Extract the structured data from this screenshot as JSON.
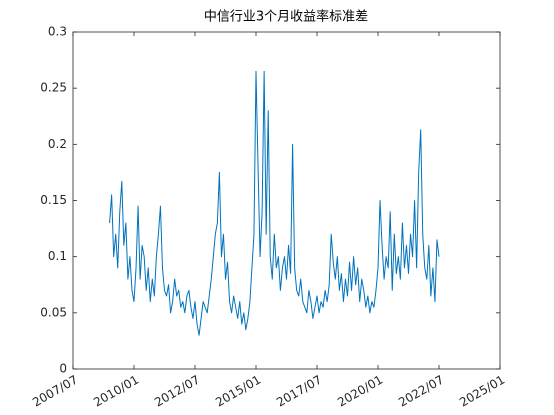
{
  "chart_data": {
    "type": "line",
    "title": "中信行业3个月收益率标准差",
    "x": [
      "2009/01",
      "2009/02",
      "2009/03",
      "2009/04",
      "2009/05",
      "2009/06",
      "2009/07",
      "2009/08",
      "2009/09",
      "2009/10",
      "2009/11",
      "2009/12",
      "2010/01",
      "2010/02",
      "2010/03",
      "2010/04",
      "2010/05",
      "2010/06",
      "2010/07",
      "2010/08",
      "2010/09",
      "2010/10",
      "2010/11",
      "2010/12",
      "2011/01",
      "2011/02",
      "2011/03",
      "2011/04",
      "2011/05",
      "2011/06",
      "2011/07",
      "2011/08",
      "2011/09",
      "2011/10",
      "2011/11",
      "2011/12",
      "2012/01",
      "2012/02",
      "2012/03",
      "2012/04",
      "2012/05",
      "2012/06",
      "2012/07",
      "2012/08",
      "2012/09",
      "2012/10",
      "2012/11",
      "2012/12",
      "2013/01",
      "2013/02",
      "2013/03",
      "2013/04",
      "2013/05",
      "2013/06",
      "2013/07",
      "2013/08",
      "2013/09",
      "2013/10",
      "2013/11",
      "2013/12",
      "2014/01",
      "2014/02",
      "2014/03",
      "2014/04",
      "2014/05",
      "2014/06",
      "2014/07",
      "2014/08",
      "2014/09",
      "2014/10",
      "2014/11",
      "2014/12",
      "2015/01",
      "2015/02",
      "2015/03",
      "2015/04",
      "2015/05",
      "2015/06",
      "2015/07",
      "2015/08",
      "2015/09",
      "2015/10",
      "2015/11",
      "2015/12",
      "2016/01",
      "2016/02",
      "2016/03",
      "2016/04",
      "2016/05",
      "2016/06",
      "2016/07",
      "2016/08",
      "2016/09",
      "2016/10",
      "2016/11",
      "2016/12",
      "2017/01",
      "2017/02",
      "2017/03",
      "2017/04",
      "2017/05",
      "2017/06",
      "2017/07",
      "2017/08",
      "2017/09",
      "2017/10",
      "2017/11",
      "2017/12",
      "2018/01",
      "2018/02",
      "2018/03",
      "2018/04",
      "2018/05",
      "2018/06",
      "2018/07",
      "2018/08",
      "2018/09",
      "2018/10",
      "2018/11",
      "2018/12",
      "2019/01",
      "2019/02",
      "2019/03",
      "2019/04",
      "2019/05",
      "2019/06",
      "2019/07",
      "2019/08",
      "2019/09",
      "2019/10",
      "2019/11",
      "2019/12",
      "2020/01",
      "2020/02",
      "2020/03",
      "2020/04",
      "2020/05",
      "2020/06",
      "2020/07",
      "2020/08",
      "2020/09",
      "2020/10",
      "2020/11",
      "2020/12",
      "2021/01",
      "2021/02",
      "2021/03",
      "2021/04",
      "2021/05",
      "2021/06",
      "2021/07",
      "2021/08",
      "2021/09",
      "2021/10",
      "2021/11",
      "2021/12",
      "2022/01",
      "2022/02",
      "2022/03",
      "2022/04",
      "2022/05",
      "2022/06",
      "2022/07"
    ],
    "series": [
      {
        "color": "#0072bd",
        "values": [
          0.13,
          0.155,
          0.1,
          0.12,
          0.09,
          0.14,
          0.167,
          0.11,
          0.13,
          0.08,
          0.1,
          0.07,
          0.06,
          0.09,
          0.145,
          0.08,
          0.11,
          0.1,
          0.07,
          0.09,
          0.06,
          0.08,
          0.065,
          0.1,
          0.12,
          0.145,
          0.09,
          0.07,
          0.065,
          0.075,
          0.05,
          0.06,
          0.08,
          0.065,
          0.07,
          0.055,
          0.06,
          0.05,
          0.065,
          0.07,
          0.055,
          0.045,
          0.06,
          0.04,
          0.03,
          0.045,
          0.06,
          0.055,
          0.05,
          0.065,
          0.08,
          0.1,
          0.12,
          0.13,
          0.175,
          0.1,
          0.12,
          0.08,
          0.095,
          0.06,
          0.05,
          0.065,
          0.055,
          0.045,
          0.06,
          0.04,
          0.05,
          0.035,
          0.045,
          0.06,
          0.09,
          0.12,
          0.265,
          0.18,
          0.1,
          0.14,
          0.265,
          0.12,
          0.23,
          0.1,
          0.08,
          0.12,
          0.09,
          0.1,
          0.07,
          0.09,
          0.1,
          0.08,
          0.11,
          0.085,
          0.2,
          0.09,
          0.07,
          0.065,
          0.08,
          0.06,
          0.055,
          0.05,
          0.07,
          0.06,
          0.045,
          0.055,
          0.065,
          0.05,
          0.06,
          0.055,
          0.07,
          0.06,
          0.075,
          0.12,
          0.095,
          0.08,
          0.1,
          0.07,
          0.085,
          0.06,
          0.08,
          0.065,
          0.095,
          0.07,
          0.1,
          0.075,
          0.09,
          0.06,
          0.08,
          0.07,
          0.055,
          0.065,
          0.05,
          0.06,
          0.055,
          0.07,
          0.09,
          0.15,
          0.11,
          0.08,
          0.1,
          0.09,
          0.14,
          0.07,
          0.12,
          0.085,
          0.1,
          0.08,
          0.13,
          0.09,
          0.11,
          0.085,
          0.12,
          0.1,
          0.15,
          0.09,
          0.175,
          0.213,
          0.12,
          0.09,
          0.08,
          0.11,
          0.065,
          0.09,
          0.06,
          0.115,
          0.1
        ]
      }
    ],
    "xlim": [
      "2007/07",
      "2025/01"
    ],
    "xticks": [
      "2007/07",
      "2010/01",
      "2012/07",
      "2015/01",
      "2017/07",
      "2020/01",
      "2022/07",
      "2025/01"
    ],
    "ylim": [
      0,
      0.3
    ],
    "yticks": [
      0,
      0.05,
      0.1,
      0.15,
      0.2,
      0.25,
      0.3
    ]
  }
}
